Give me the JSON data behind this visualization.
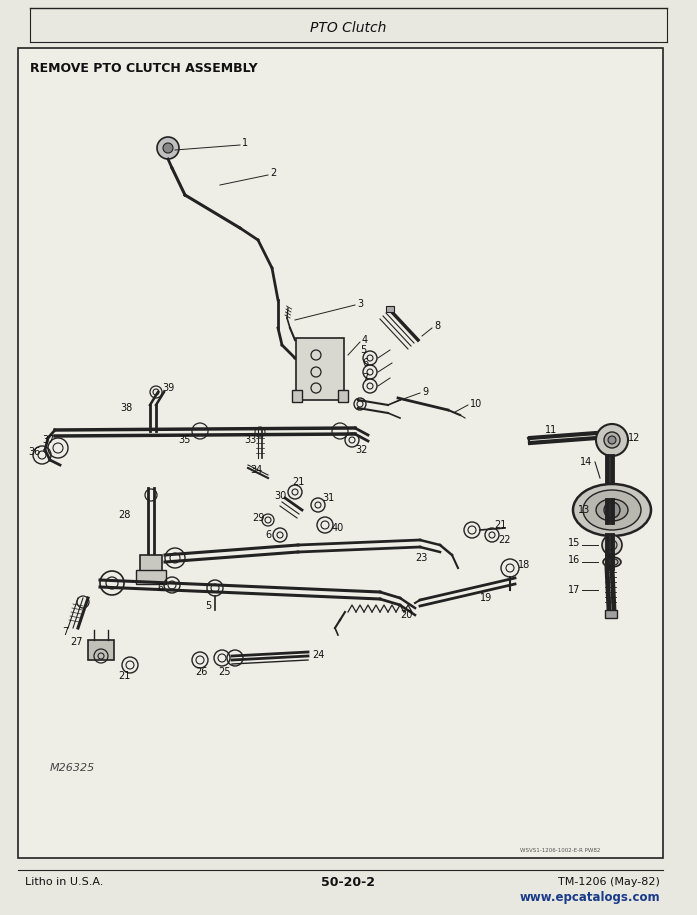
{
  "title_header": "PTO Clutch",
  "diagram_title": "REMOVE PTO CLUTCH ASSEMBLY",
  "footer_left": "Litho in U.S.A.",
  "footer_center": "50-20-2",
  "footer_right": "TM-1206 (May-82)",
  "footer_url": "www.epcatalogs.com",
  "watermark": "M26325",
  "bg_color": "#e8e8e0",
  "page_bg": "#f0efe8",
  "border_color": "#333333",
  "text_color": "#111111",
  "url_color": "#1a3a8a",
  "fig_width": 6.97,
  "fig_height": 9.15,
  "dpi": 100
}
